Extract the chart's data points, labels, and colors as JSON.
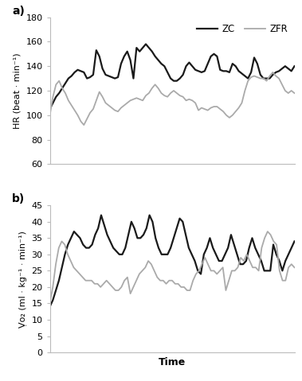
{
  "title_a": "a)",
  "title_b": "b)",
  "legend_zc": "ZC",
  "legend_zfr": "ZFR",
  "color_zc": "#1a1a1a",
  "color_zfr": "#aaaaaa",
  "linewidth_zc": 1.6,
  "linewidth_zfr": 1.3,
  "hr_ylim": [
    60,
    180
  ],
  "hr_yticks": [
    60,
    80,
    100,
    120,
    140,
    160,
    180
  ],
  "vo2_ylim": [
    0,
    45
  ],
  "vo2_yticks": [
    0,
    5,
    10,
    15,
    20,
    25,
    30,
    35,
    40,
    45
  ],
  "xlabel": "Time",
  "hr_ylabel": "HR (beat · min⁻¹)",
  "vo2_ylabel": "Ṿo₂ (ml · kg⁻¹ · min⁻¹)",
  "hr_zc": [
    105,
    110,
    115,
    118,
    122,
    126,
    130,
    132,
    135,
    137,
    136,
    135,
    130,
    131,
    133,
    153,
    148,
    138,
    133,
    132,
    131,
    130,
    131,
    142,
    148,
    152,
    145,
    130,
    155,
    152,
    155,
    158,
    155,
    152,
    148,
    145,
    142,
    140,
    135,
    130,
    128,
    128,
    130,
    133,
    140,
    143,
    140,
    137,
    136,
    135,
    136,
    142,
    148,
    150,
    148,
    137,
    136,
    136,
    135,
    142,
    140,
    136,
    134,
    132,
    130,
    135,
    147,
    142,
    133,
    130,
    130,
    130,
    133,
    135,
    136,
    138,
    140,
    138,
    136,
    140
  ],
  "hr_zfr": [
    100,
    115,
    125,
    128,
    122,
    118,
    112,
    108,
    104,
    100,
    95,
    92,
    97,
    102,
    105,
    112,
    119,
    115,
    110,
    108,
    106,
    104,
    103,
    106,
    108,
    110,
    112,
    113,
    114,
    113,
    112,
    116,
    118,
    122,
    125,
    122,
    118,
    116,
    115,
    118,
    120,
    118,
    116,
    115,
    112,
    113,
    112,
    110,
    104,
    106,
    105,
    104,
    106,
    107,
    107,
    105,
    103,
    100,
    98,
    100,
    103,
    106,
    110,
    120,
    128,
    131,
    132,
    131,
    130,
    130,
    128,
    132,
    135,
    132,
    130,
    125,
    120,
    118,
    120,
    118
  ],
  "vo2_zc": [
    14,
    16,
    19,
    22,
    26,
    30,
    33,
    35,
    37,
    36,
    35,
    33,
    32,
    32,
    33,
    36,
    38,
    42,
    39,
    36,
    34,
    32,
    31,
    30,
    30,
    32,
    36,
    40,
    38,
    35,
    35,
    36,
    38,
    42,
    40,
    35,
    32,
    30,
    30,
    30,
    32,
    35,
    38,
    41,
    40,
    36,
    32,
    30,
    28,
    25,
    24,
    30,
    32,
    35,
    32,
    30,
    28,
    28,
    30,
    32,
    36,
    33,
    30,
    27,
    27,
    28,
    32,
    35,
    32,
    30,
    28,
    25,
    25,
    25,
    33,
    30,
    28,
    25,
    28,
    30,
    32,
    34
  ],
  "vo2_zfr": [
    15,
    20,
    27,
    32,
    34,
    33,
    30,
    28,
    26,
    25,
    24,
    23,
    22,
    22,
    22,
    21,
    21,
    20,
    21,
    22,
    21,
    20,
    19,
    19,
    20,
    22,
    23,
    18,
    20,
    22,
    24,
    25,
    26,
    28,
    27,
    25,
    23,
    22,
    22,
    21,
    22,
    22,
    21,
    21,
    20,
    20,
    19,
    19,
    22,
    24,
    25,
    27,
    29,
    27,
    25,
    25,
    24,
    25,
    26,
    19,
    22,
    25,
    25,
    26,
    29,
    28,
    30,
    28,
    26,
    26,
    25,
    32,
    35,
    37,
    36,
    34,
    33,
    25,
    22,
    22,
    26,
    27,
    26
  ]
}
